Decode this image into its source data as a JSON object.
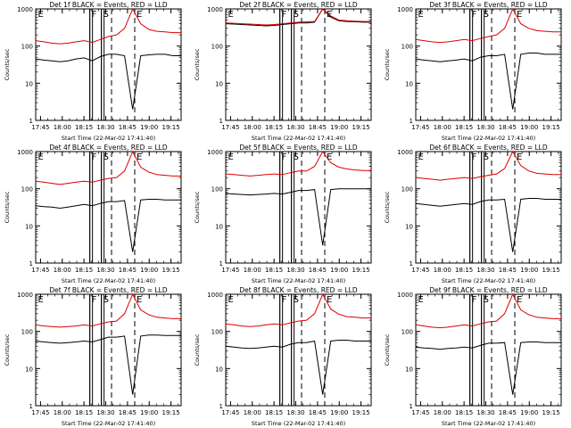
{
  "chart_data": [
    {
      "type": "line",
      "title": "Det 1f BLACK = Events, RED = LLD",
      "xlabel": "Start Time (22-Mar-02 17:41:40)",
      "ylabel": "Counts/sec",
      "yscale": "log",
      "ylim": [
        1,
        1000
      ],
      "xticks": [
        "17:45",
        "18:00",
        "18:15",
        "18:30",
        "18:45",
        "19:00",
        "19:15"
      ],
      "yticks": [
        "1",
        "10",
        "100",
        "1000"
      ],
      "markers": [
        {
          "label": "E",
          "x": "17:42"
        },
        {
          "label": "F",
          "x": "18:19"
        },
        {
          "label": "S",
          "x": "18:27"
        },
        {
          "label": "E",
          "x": "18:50"
        }
      ],
      "series": [
        {
          "name": "Events",
          "color": "#000000",
          "values": [
            45,
            42,
            40,
            38,
            40,
            45,
            48,
            40,
            52,
            60,
            60,
            55,
            2,
            55,
            58,
            60,
            60,
            55,
            55
          ]
        },
        {
          "name": "LLD",
          "color": "#dd0000",
          "values": [
            140,
            130,
            120,
            115,
            120,
            130,
            140,
            125,
            150,
            180,
            200,
            300,
            1000,
            400,
            280,
            250,
            240,
            230,
            230
          ]
        }
      ]
    },
    {
      "type": "line",
      "title": "Det 2f BLACK = Events, RED = LLD",
      "xlabel": "Start Time (22-Mar-02 17:41:40)",
      "ylabel": "Counts/sec",
      "yscale": "log",
      "ylim": [
        1,
        1000
      ],
      "xticks": [
        "17:45",
        "18:00",
        "18:15",
        "18:30",
        "18:45",
        "19:00",
        "19:15"
      ],
      "yticks": [
        "1",
        "10",
        "100",
        "1000"
      ],
      "markers": [
        {
          "label": "E",
          "x": "17:42"
        },
        {
          "label": "F",
          "x": "18:19"
        },
        {
          "label": "S",
          "x": "18:27"
        },
        {
          "label": "E",
          "x": "18:50"
        }
      ],
      "series": [
        {
          "name": "Events",
          "color": "#000000",
          "values": [
            400,
            390,
            380,
            370,
            360,
            350,
            360,
            380,
            400,
            420,
            420,
            440,
            1000,
            600,
            480,
            460,
            450,
            440,
            440
          ]
        },
        {
          "name": "LLD",
          "color": "#dd0000",
          "values": [
            420,
            410,
            400,
            390,
            380,
            370,
            380,
            400,
            420,
            440,
            450,
            460,
            1000,
            650,
            500,
            480,
            470,
            460,
            460
          ]
        }
      ]
    },
    {
      "type": "line",
      "title": "Det 3f BLACK = Events, RED = LLD",
      "xlabel": "Start Time (22-Mar-02 17:41:40)",
      "ylabel": "Counts/sec",
      "yscale": "log",
      "ylim": [
        1,
        1000
      ],
      "xticks": [
        "17:45",
        "18:00",
        "18:15",
        "18:30",
        "18:45",
        "19:00",
        "19:15"
      ],
      "yticks": [
        "1",
        "10",
        "100",
        "1000"
      ],
      "markers": [
        {
          "label": "E",
          "x": "17:42"
        },
        {
          "label": "F",
          "x": "18:19"
        },
        {
          "label": "S",
          "x": "18:27"
        },
        {
          "label": "E",
          "x": "18:50"
        }
      ],
      "series": [
        {
          "name": "Events",
          "color": "#000000",
          "values": [
            45,
            42,
            40,
            38,
            40,
            42,
            45,
            40,
            50,
            55,
            55,
            60,
            2,
            60,
            65,
            65,
            60,
            60,
            60
          ]
        },
        {
          "name": "LLD",
          "color": "#dd0000",
          "values": [
            150,
            140,
            130,
            125,
            130,
            140,
            150,
            140,
            160,
            180,
            200,
            300,
            1000,
            400,
            300,
            260,
            250,
            240,
            240
          ]
        }
      ]
    },
    {
      "type": "line",
      "title": "Det 4f BLACK = Events, RED = LLD",
      "xlabel": "Start Time (22-Mar-02 17:41:40)",
      "ylabel": "Counts/sec",
      "yscale": "log",
      "ylim": [
        1,
        1000
      ],
      "xticks": [
        "17:45",
        "18:00",
        "18:15",
        "18:30",
        "18:45",
        "19:00",
        "19:15"
      ],
      "yticks": [
        "1",
        "10",
        "100",
        "1000"
      ],
      "markers": [
        {
          "label": "E",
          "x": "17:42"
        },
        {
          "label": "F",
          "x": "18:19"
        },
        {
          "label": "S",
          "x": "18:27"
        },
        {
          "label": "E",
          "x": "18:50"
        }
      ],
      "series": [
        {
          "name": "Events",
          "color": "#000000",
          "values": [
            35,
            33,
            32,
            30,
            32,
            35,
            38,
            35,
            40,
            45,
            45,
            48,
            2,
            50,
            52,
            52,
            50,
            50,
            50
          ]
        },
        {
          "name": "LLD",
          "color": "#dd0000",
          "values": [
            160,
            150,
            140,
            130,
            140,
            150,
            160,
            150,
            170,
            190,
            200,
            300,
            1000,
            380,
            280,
            240,
            230,
            220,
            220
          ]
        }
      ]
    },
    {
      "type": "line",
      "title": "Det 5f BLACK = Events, RED = LLD",
      "xlabel": "Start Time (22-Mar-02 17:41:40)",
      "ylabel": "Counts/sec",
      "yscale": "log",
      "ylim": [
        1,
        1000
      ],
      "xticks": [
        "17:45",
        "18:00",
        "18:15",
        "18:30",
        "18:45",
        "19:00",
        "19:15"
      ],
      "yticks": [
        "1",
        "10",
        "100",
        "1000"
      ],
      "markers": [
        {
          "label": "E",
          "x": "17:42"
        },
        {
          "label": "F",
          "x": "18:19"
        },
        {
          "label": "S",
          "x": "18:27"
        },
        {
          "label": "E",
          "x": "18:50"
        }
      ],
      "series": [
        {
          "name": "Events",
          "color": "#000000",
          "values": [
            75,
            72,
            70,
            68,
            70,
            72,
            75,
            72,
            80,
            90,
            90,
            95,
            3,
            95,
            100,
            100,
            100,
            100,
            100
          ]
        },
        {
          "name": "LLD",
          "color": "#dd0000",
          "values": [
            250,
            240,
            230,
            220,
            230,
            240,
            250,
            240,
            270,
            300,
            300,
            400,
            1000,
            500,
            380,
            340,
            320,
            310,
            310
          ]
        }
      ]
    },
    {
      "type": "line",
      "title": "Det 6f BLACK = Events, RED = LLD",
      "xlabel": "Start Time (22-Mar-02 17:41:40)",
      "ylabel": "Counts/sec",
      "yscale": "log",
      "ylim": [
        1,
        1000
      ],
      "xticks": [
        "17:45",
        "18:00",
        "18:15",
        "18:30",
        "18:45",
        "19:00",
        "19:15"
      ],
      "yticks": [
        "1",
        "10",
        "100",
        "1000"
      ],
      "markers": [
        {
          "label": "E",
          "x": "17:42"
        },
        {
          "label": "F",
          "x": "18:19"
        },
        {
          "label": "S",
          "x": "18:27"
        },
        {
          "label": "E",
          "x": "18:50"
        }
      ],
      "series": [
        {
          "name": "Events",
          "color": "#000000",
          "values": [
            40,
            38,
            36,
            34,
            36,
            38,
            40,
            38,
            45,
            50,
            50,
            52,
            2,
            52,
            55,
            55,
            52,
            52,
            52
          ]
        },
        {
          "name": "LLD",
          "color": "#dd0000",
          "values": [
            200,
            190,
            180,
            170,
            180,
            190,
            200,
            190,
            210,
            230,
            250,
            350,
            1000,
            420,
            300,
            260,
            250,
            240,
            240
          ]
        }
      ]
    },
    {
      "type": "line",
      "title": "Det 7f BLACK = Events, RED = LLD",
      "xlabel": "Start Time (22-Mar-02 17:41:40)",
      "ylabel": "Counts/sec",
      "yscale": "log",
      "ylim": [
        1,
        1000
      ],
      "xticks": [
        "17:45",
        "18:00",
        "18:15",
        "18:30",
        "18:45",
        "19:00",
        "19:15"
      ],
      "yticks": [
        "1",
        "10",
        "100",
        "1000"
      ],
      "markers": [
        {
          "label": "E",
          "x": "17:42"
        },
        {
          "label": "F",
          "x": "18:19"
        },
        {
          "label": "S",
          "x": "18:27"
        },
        {
          "label": "E",
          "x": "18:50"
        }
      ],
      "series": [
        {
          "name": "Events",
          "color": "#000000",
          "values": [
            55,
            52,
            50,
            48,
            50,
            52,
            55,
            52,
            60,
            70,
            70,
            75,
            2,
            75,
            80,
            80,
            78,
            78,
            78
          ]
        },
        {
          "name": "LLD",
          "color": "#dd0000",
          "values": [
            150,
            140,
            135,
            130,
            135,
            140,
            150,
            140,
            160,
            180,
            190,
            300,
            1000,
            380,
            280,
            240,
            230,
            220,
            220
          ]
        }
      ]
    },
    {
      "type": "line",
      "title": "Det 8f BLACK = Events, RED = LLD",
      "xlabel": "Start Time (22-Mar-02 17:41:40)",
      "ylabel": "Counts/sec",
      "yscale": "log",
      "ylim": [
        1,
        1000
      ],
      "xticks": [
        "17:45",
        "18:00",
        "18:15",
        "18:30",
        "18:45",
        "19:00",
        "19:15"
      ],
      "yticks": [
        "1",
        "10",
        "100",
        "1000"
      ],
      "markers": [
        {
          "label": "E",
          "x": "17:42"
        },
        {
          "label": "F",
          "x": "18:19"
        },
        {
          "label": "S",
          "x": "18:27"
        },
        {
          "label": "E",
          "x": "18:50"
        }
      ],
      "series": [
        {
          "name": "Events",
          "color": "#000000",
          "values": [
            40,
            38,
            36,
            35,
            36,
            38,
            40,
            38,
            45,
            50,
            50,
            55,
            2,
            55,
            58,
            58,
            55,
            55,
            55
          ]
        },
        {
          "name": "LLD",
          "color": "#dd0000",
          "values": [
            160,
            150,
            140,
            135,
            140,
            150,
            160,
            150,
            170,
            190,
            200,
            300,
            1000,
            400,
            290,
            250,
            240,
            230,
            230
          ]
        }
      ]
    },
    {
      "type": "line",
      "title": "Det 9f BLACK = Events, RED = LLD",
      "xlabel": "Start Time (22-Mar-02 17:41:40)",
      "ylabel": "Counts/sec",
      "yscale": "log",
      "ylim": [
        1,
        1000
      ],
      "xticks": [
        "17:45",
        "18:00",
        "18:15",
        "18:30",
        "18:45",
        "19:00",
        "19:15"
      ],
      "yticks": [
        "1",
        "10",
        "100",
        "1000"
      ],
      "markers": [
        {
          "label": "E",
          "x": "17:42"
        },
        {
          "label": "F",
          "x": "18:19"
        },
        {
          "label": "S",
          "x": "18:27"
        },
        {
          "label": "E",
          "x": "18:50"
        }
      ],
      "series": [
        {
          "name": "Events",
          "color": "#000000",
          "values": [
            38,
            36,
            35,
            33,
            35,
            36,
            38,
            36,
            42,
            48,
            48,
            50,
            2,
            50,
            52,
            52,
            50,
            50,
            50
          ]
        },
        {
          "name": "LLD",
          "color": "#dd0000",
          "values": [
            150,
            140,
            130,
            125,
            130,
            140,
            150,
            140,
            160,
            180,
            190,
            300,
            1000,
            380,
            280,
            240,
            230,
            220,
            220
          ]
        }
      ]
    }
  ]
}
